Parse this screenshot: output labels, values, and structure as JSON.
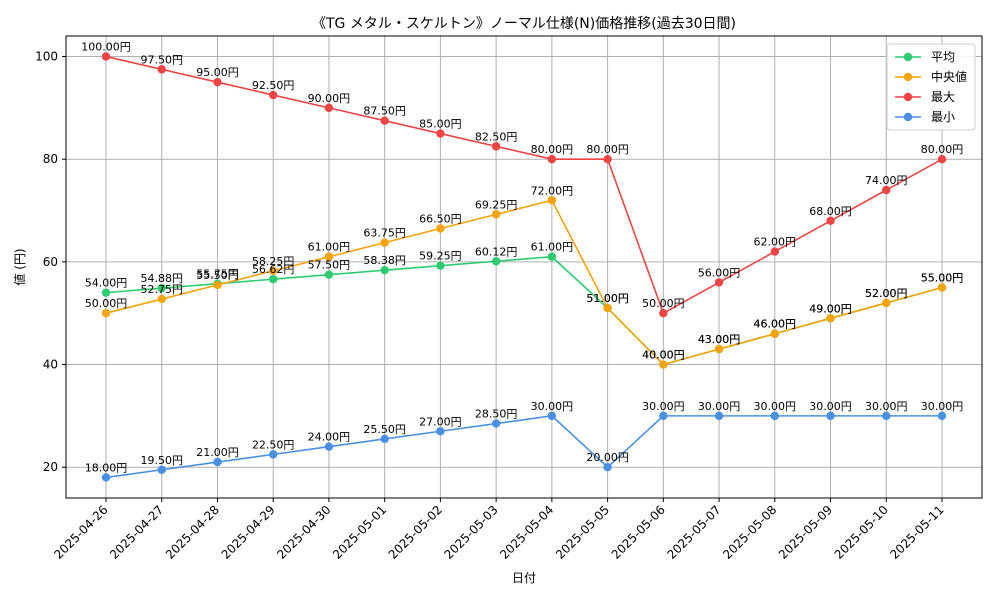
{
  "chart_data": {
    "type": "line",
    "title": "《TG メタル・スケルトン》ノーマル仕様(N)価格推移(過去30日間)",
    "xlabel": "日付",
    "ylabel": "値 (円)",
    "ylim": [
      14,
      104
    ],
    "yticks": [
      20,
      40,
      60,
      80,
      100
    ],
    "grid": true,
    "legend_position": "top-right",
    "x": [
      "2025-04-26",
      "2025-04-27",
      "2025-04-28",
      "2025-04-29",
      "2025-04-30",
      "2025-05-01",
      "2025-05-02",
      "2025-05-03",
      "2025-05-04",
      "2025-05-05",
      "2025-05-06",
      "2025-05-07",
      "2025-05-08",
      "2025-05-09",
      "2025-05-10",
      "2025-05-11"
    ],
    "series": [
      {
        "name": "平均",
        "color": "#2ecc71",
        "values": [
          54.0,
          54.88,
          55.75,
          56.62,
          57.5,
          58.38,
          59.25,
          60.12,
          61.0,
          51.0,
          40.0,
          43.0,
          46.0,
          49.0,
          52.0,
          55.0
        ],
        "labels": [
          "54.00円",
          "54.88円",
          "55.75円",
          "56.62円",
          "57.50円",
          "58.38円",
          "59.25円",
          "60.12円",
          "61.00円",
          "51.00円",
          "40.00円",
          "43.00円",
          "46.00円",
          "49.00円",
          "52.00円",
          "55.00円"
        ]
      },
      {
        "name": "中央値",
        "color": "#f5a30a",
        "values": [
          50.0,
          52.75,
          55.5,
          58.25,
          61.0,
          63.75,
          66.5,
          69.25,
          72.0,
          51.0,
          40.0,
          43.0,
          46.0,
          49.0,
          52.0,
          55.0
        ],
        "labels": [
          "50.00円",
          "52.75円",
          "55.50円",
          "58.25円",
          "61.00円",
          "63.75円",
          "66.50円",
          "69.25円",
          "72.00円",
          "51.00円",
          "40.00円",
          "43.00円",
          "46.00円",
          "49.00円",
          "52.00円",
          "55.00円"
        ]
      },
      {
        "name": "最大",
        "color": "#ef4444",
        "values": [
          100.0,
          97.5,
          95.0,
          92.5,
          90.0,
          87.5,
          85.0,
          82.5,
          80.0,
          80.0,
          50.0,
          56.0,
          62.0,
          68.0,
          74.0,
          80.0
        ],
        "labels": [
          "100.00円",
          "97.50円",
          "95.00円",
          "92.50円",
          "90.00円",
          "87.50円",
          "85.00円",
          "82.50円",
          "80.00円",
          "80.00円",
          "50.00円",
          "56.00円",
          "62.00円",
          "68.00円",
          "74.00円",
          "80.00円"
        ]
      },
      {
        "name": "最小",
        "color": "#4a90e2",
        "values": [
          18.0,
          19.5,
          21.0,
          22.5,
          24.0,
          25.5,
          27.0,
          28.5,
          30.0,
          20.0,
          30.0,
          30.0,
          30.0,
          30.0,
          30.0,
          30.0
        ],
        "labels": [
          "18.00円",
          "19.50円",
          "21.00円",
          "22.50円",
          "24.00円",
          "25.50円",
          "27.00円",
          "28.50円",
          "30.00円",
          "20.00円",
          "30.00円",
          "30.00円",
          "30.00円",
          "30.00円",
          "30.00円",
          "30.00円"
        ]
      }
    ]
  }
}
